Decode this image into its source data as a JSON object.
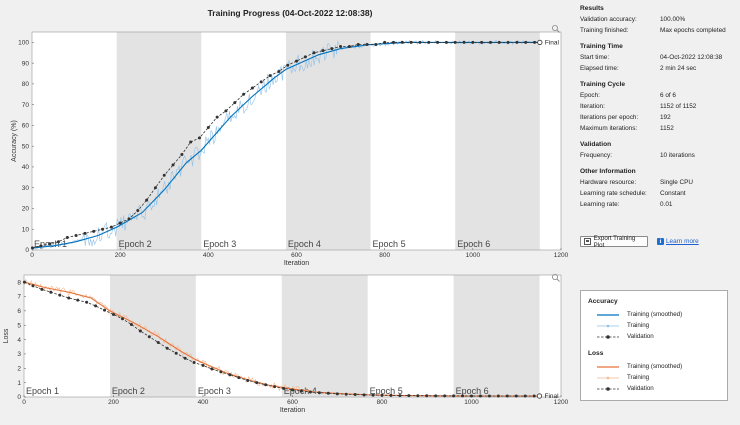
{
  "title": "Training Progress (04-Oct-2022 12:08:38)",
  "colors": {
    "acc_smoothed": "#0072bd",
    "acc_training": "#8fc1e8",
    "loss_smoothed": "#e8743b",
    "loss_training": "#f3b890",
    "validation": "#333333",
    "epoch_shade": "#e3e3e3",
    "plot_bg": "#ffffff"
  },
  "epoch_labels": [
    "Epoch 1",
    "Epoch 2",
    "Epoch 3",
    "Epoch 4",
    "Epoch 5",
    "Epoch 6"
  ],
  "final_label": "Final",
  "chart_data": [
    {
      "type": "line",
      "name": "accuracy",
      "ylabel": "Accuracy (%)",
      "xlabel": "Iteration",
      "xlim": [
        0,
        1200
      ],
      "ylim": [
        0,
        105
      ],
      "xticks": [
        "0",
        "200",
        "400",
        "600",
        "800",
        "1000",
        "1200"
      ],
      "yticks": [
        "0",
        "10",
        "20",
        "30",
        "40",
        "50",
        "60",
        "70",
        "80",
        "90",
        "100"
      ],
      "epoch_boundaries": [
        0,
        192,
        384,
        576,
        768,
        960,
        1152
      ],
      "series": [
        {
          "name": "Training (smoothed)",
          "x": [
            1,
            50,
            100,
            150,
            192,
            250,
            300,
            350,
            384,
            450,
            500,
            550,
            576,
            650,
            700,
            768,
            850,
            960,
            1050,
            1152
          ],
          "y": [
            1,
            2,
            4,
            7,
            11,
            18,
            29,
            42,
            48,
            64,
            74,
            83,
            87,
            94,
            97,
            99,
            100,
            100,
            100,
            100
          ]
        },
        {
          "name": "Validation",
          "x": [
            1,
            20,
            40,
            60,
            80,
            100,
            120,
            140,
            160,
            180,
            200,
            220,
            240,
            260,
            280,
            300,
            320,
            340,
            360,
            380,
            400,
            420,
            440,
            460,
            480,
            500,
            520,
            540,
            560,
            580,
            600,
            620,
            640,
            660,
            680,
            700,
            720,
            740,
            760,
            780,
            800,
            820,
            840,
            860,
            880,
            900,
            920,
            940,
            960,
            980,
            1000,
            1020,
            1040,
            1060,
            1080,
            1100,
            1120,
            1140,
            1152
          ],
          "y": [
            1,
            2,
            3,
            4,
            6,
            7,
            8,
            9,
            10,
            11,
            13,
            15,
            19,
            24,
            30,
            36,
            41,
            46,
            52,
            54,
            59,
            64,
            67,
            71,
            75,
            78,
            81,
            84,
            86,
            89,
            91,
            93,
            95,
            96,
            97,
            98,
            98,
            99,
            99,
            99,
            100,
            100,
            100,
            100,
            100,
            100,
            100,
            100,
            100,
            100,
            100,
            100,
            100,
            100,
            100,
            100,
            100,
            100,
            100
          ]
        }
      ]
    },
    {
      "type": "line",
      "name": "loss",
      "ylabel": "Loss",
      "xlabel": "Iteration",
      "xlim": [
        0,
        1200
      ],
      "ylim": [
        0,
        8.5
      ],
      "xticks": [
        "0",
        "200",
        "400",
        "600",
        "800",
        "1000",
        "1200"
      ],
      "yticks": [
        "0",
        "1",
        "2",
        "3",
        "4",
        "5",
        "6",
        "7",
        "8"
      ],
      "epoch_boundaries": [
        0,
        192,
        384,
        576,
        768,
        960,
        1152
      ],
      "series": [
        {
          "name": "Training (smoothed)",
          "x": [
            1,
            50,
            100,
            150,
            192,
            250,
            300,
            350,
            384,
            450,
            500,
            550,
            600,
            650,
            700,
            768,
            850,
            960,
            1050,
            1152
          ],
          "y": [
            8,
            7.6,
            7.3,
            6.9,
            6.0,
            5.1,
            4.2,
            3.2,
            2.6,
            1.7,
            1.2,
            0.8,
            0.55,
            0.35,
            0.25,
            0.15,
            0.1,
            0.08,
            0.07,
            0.06
          ]
        },
        {
          "name": "Validation",
          "x": [
            1,
            20,
            40,
            60,
            80,
            100,
            120,
            140,
            160,
            180,
            200,
            220,
            240,
            260,
            280,
            300,
            320,
            340,
            360,
            380,
            400,
            420,
            440,
            460,
            480,
            500,
            520,
            540,
            560,
            580,
            600,
            620,
            640,
            660,
            680,
            700,
            720,
            740,
            760,
            780,
            800,
            820,
            840,
            860,
            880,
            900,
            920,
            940,
            960,
            980,
            1000,
            1020,
            1040,
            1060,
            1080,
            1100,
            1120,
            1140,
            1152
          ],
          "y": [
            8,
            7.75,
            7.5,
            7.3,
            7.1,
            6.9,
            6.75,
            6.6,
            6.35,
            6.05,
            5.75,
            5.45,
            5.05,
            4.6,
            4.2,
            3.8,
            3.4,
            3.05,
            2.7,
            2.4,
            2.2,
            1.95,
            1.75,
            1.55,
            1.35,
            1.15,
            1.0,
            0.85,
            0.72,
            0.6,
            0.5,
            0.42,
            0.35,
            0.3,
            0.26,
            0.22,
            0.19,
            0.17,
            0.15,
            0.13,
            0.12,
            0.11,
            0.1,
            0.1,
            0.09,
            0.09,
            0.08,
            0.08,
            0.08,
            0.08,
            0.07,
            0.07,
            0.07,
            0.07,
            0.07,
            0.07,
            0.07,
            0.07,
            0.07
          ]
        }
      ]
    }
  ],
  "info": {
    "results_title": "Results",
    "val_acc_label": "Validation accuracy:",
    "val_acc_value": "100.00%",
    "finished_label": "Training finished:",
    "finished_value": "Max epochs completed",
    "time_title": "Training Time",
    "start_label": "Start time:",
    "start_value": "04-Oct-2022 12:08:38",
    "elapsed_label": "Elapsed time:",
    "elapsed_value": "2 min 24 sec",
    "cycle_title": "Training Cycle",
    "epoch_label": "Epoch:",
    "epoch_value": "6 of 6",
    "iter_label": "Iteration:",
    "iter_value": "1152 of 1152",
    "ipe_label": "Iterations per epoch:",
    "ipe_value": "192",
    "maxit_label": "Maximum iterations:",
    "maxit_value": "1152",
    "validation_title": "Validation",
    "freq_label": "Frequency:",
    "freq_value": "10 iterations",
    "other_title": "Other Information",
    "hw_label": "Hardware resource:",
    "hw_value": "Single CPU",
    "lrs_label": "Learning rate schedule:",
    "lrs_value": "Constant",
    "lr_label": "Learning rate:",
    "lr_value": "0.01"
  },
  "buttons": {
    "export_label": "Export Training Plot",
    "learn_more_label": "Learn more"
  },
  "legend": {
    "accuracy_title": "Accuracy",
    "loss_title": "Loss",
    "smoothed_label": "Training (smoothed)",
    "training_label": "Training",
    "validation_label": "Validation"
  }
}
